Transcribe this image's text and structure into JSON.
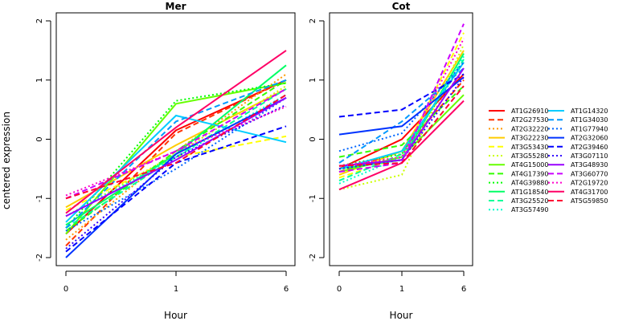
{
  "chart_data": {
    "type": "line",
    "x": [
      "0",
      "1",
      "6"
    ],
    "xlabel": "Hour",
    "ylabel": "centered expression",
    "ylim": [
      -2,
      2
    ],
    "yticks": [
      -2,
      -1,
      0,
      1,
      2
    ],
    "grid": false,
    "legend_position": "right",
    "series": [
      {
        "name": "AT1G26910",
        "color": "#FF0000",
        "dash": "solid"
      },
      {
        "name": "AT2G27530",
        "color": "#FF3300",
        "dash": "dashed"
      },
      {
        "name": "AT2G32220",
        "color": "#FF9900",
        "dash": "dotted"
      },
      {
        "name": "AT3G22230",
        "color": "#FFCC00",
        "dash": "solid"
      },
      {
        "name": "AT3G53430",
        "color": "#FFFF00",
        "dash": "dashed"
      },
      {
        "name": "AT3G55280",
        "color": "#CCFF00",
        "dash": "dotted"
      },
      {
        "name": "AT4G15000",
        "color": "#66FF00",
        "dash": "solid"
      },
      {
        "name": "AT4G17390",
        "color": "#33FF00",
        "dash": "dashed"
      },
      {
        "name": "AT4G39880",
        "color": "#00FF00",
        "dash": "dotted"
      },
      {
        "name": "AT1G18540",
        "color": "#00FF66",
        "dash": "solid"
      },
      {
        "name": "AT3G25520",
        "color": "#00FF99",
        "dash": "dashed"
      },
      {
        "name": "AT3G57490",
        "color": "#00FFCC",
        "dash": "dotted"
      },
      {
        "name": "AT1G14320",
        "color": "#00CCFF",
        "dash": "solid"
      },
      {
        "name": "AT1G34030",
        "color": "#0099FF",
        "dash": "dashed"
      },
      {
        "name": "AT1G77940",
        "color": "#0066FF",
        "dash": "dotted"
      },
      {
        "name": "AT2G32060",
        "color": "#0033FF",
        "dash": "solid"
      },
      {
        "name": "AT2G39460",
        "color": "#0000FF",
        "dash": "dashed"
      },
      {
        "name": "AT3G07110",
        "color": "#3300FF",
        "dash": "dotted"
      },
      {
        "name": "AT3G48930",
        "color": "#9900FF",
        "dash": "solid"
      },
      {
        "name": "AT3G60770",
        "color": "#CC00FF",
        "dash": "dashed"
      },
      {
        "name": "AT2G19720",
        "color": "#FF00CC",
        "dash": "dotted"
      },
      {
        "name": "AT4G31700",
        "color": "#FF0066",
        "dash": "solid"
      },
      {
        "name": "AT5G59850",
        "color": "#FF0033",
        "dash": "dashed"
      }
    ],
    "panels": [
      {
        "title": "Mer",
        "values": [
          [
            -1.6,
            0.15,
            1.0
          ],
          [
            -1.8,
            0.1,
            1.0
          ],
          [
            -1.7,
            -0.2,
            1.1
          ],
          [
            -1.15,
            -0.1,
            0.85
          ],
          [
            -1.2,
            -0.3,
            0.05
          ],
          [
            -1.3,
            -0.25,
            0.9
          ],
          [
            -1.6,
            0.6,
            0.95
          ],
          [
            -1.55,
            -0.2,
            1.0
          ],
          [
            -1.5,
            0.65,
            0.95
          ],
          [
            -1.45,
            -0.25,
            1.25
          ],
          [
            -1.5,
            -0.3,
            0.85
          ],
          [
            -1.3,
            -0.3,
            0.75
          ],
          [
            -1.4,
            0.4,
            -0.05
          ],
          [
            -1.5,
            0.3,
            1.0
          ],
          [
            -1.55,
            -0.5,
            0.7
          ],
          [
            -2.0,
            -0.25,
            0.7
          ],
          [
            -1.9,
            -0.4,
            0.22
          ],
          [
            -1.85,
            -0.3,
            0.58
          ],
          [
            -1.3,
            -0.35,
            0.7
          ],
          [
            -1.0,
            -0.2,
            0.85
          ],
          [
            -0.95,
            -0.2,
            0.55
          ],
          [
            -1.25,
            0.2,
            1.5
          ],
          [
            -1.0,
            -0.4,
            0.75
          ]
        ]
      },
      {
        "title": "Cot",
        "values": [
          [
            -0.5,
            0.0,
            1.1
          ],
          [
            -0.55,
            -0.2,
            1.0
          ],
          [
            -0.5,
            -0.3,
            1.2
          ],
          [
            -0.6,
            -0.2,
            1.5
          ],
          [
            -0.65,
            -0.3,
            1.8
          ],
          [
            -0.85,
            -0.6,
            1.6
          ],
          [
            -0.55,
            -0.3,
            0.75
          ],
          [
            -0.3,
            -0.1,
            0.9
          ],
          [
            -0.45,
            -0.25,
            1.3
          ],
          [
            -0.5,
            -0.35,
            1.45
          ],
          [
            -0.7,
            -0.25,
            1.35
          ],
          [
            -0.75,
            -0.3,
            1.4
          ],
          [
            -0.5,
            -0.2,
            1.3
          ],
          [
            -0.4,
            0.3,
            1.2
          ],
          [
            -0.2,
            0.1,
            1.3
          ],
          [
            0.08,
            0.22,
            1.05
          ],
          [
            0.38,
            0.5,
            1.1
          ],
          [
            -0.5,
            -0.35,
            1.05
          ],
          [
            -0.45,
            -0.35,
            1.2
          ],
          [
            -0.55,
            -0.4,
            1.95
          ],
          [
            -0.45,
            -0.3,
            1.7
          ],
          [
            -0.85,
            -0.4,
            0.65
          ],
          [
            -0.45,
            -0.4,
            0.9
          ]
        ]
      }
    ]
  }
}
